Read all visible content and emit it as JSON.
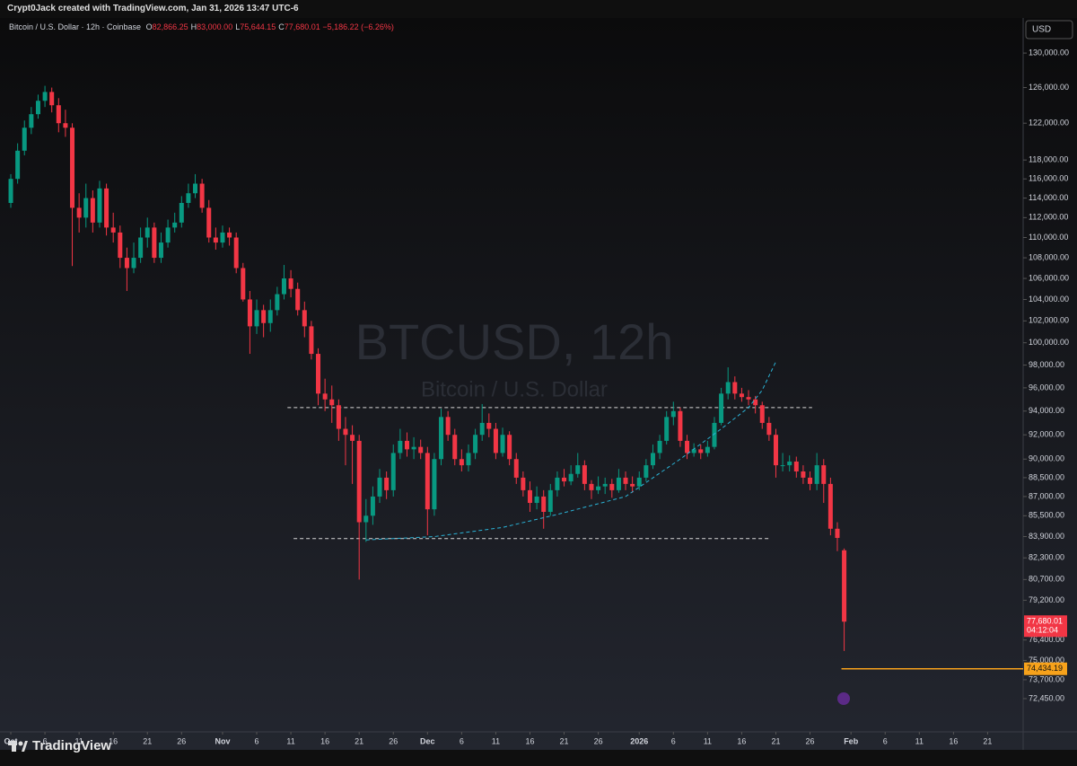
{
  "header": {
    "credit": "Crypt0Jack created with TradingView.com, Jan 31, 2026 13:47 UTC-6"
  },
  "footer": {
    "brand": "TradingView"
  },
  "chart_data": {
    "type": "candlestick",
    "symbol": "Bitcoin / U.S. Dollar · 12h · Coinbase",
    "legend": [
      {
        "key": "O",
        "label": "82,866.25"
      },
      {
        "key": "H",
        "label": "83,000.00"
      },
      {
        "key": "L",
        "label": "75,644.15"
      },
      {
        "key": "C",
        "label": "77,680.01"
      }
    ],
    "change": "−5,186.22 (−6.26%)",
    "watermark": {
      "title": "BTCUSD, 12h",
      "subtitle": "Bitcoin / U.S. Dollar"
    },
    "currency": "USD",
    "up_color": "#089981",
    "down_color": "#f23645",
    "x": [
      0,
      1,
      2,
      3,
      4,
      5,
      6,
      7,
      8,
      9,
      10,
      11,
      12,
      13,
      14,
      15,
      16,
      17,
      18,
      19,
      20,
      21,
      22,
      23,
      24,
      25,
      26,
      27,
      28,
      29,
      30,
      31,
      32,
      33,
      34,
      35,
      36,
      37,
      38,
      39,
      40,
      41,
      42,
      43,
      44,
      45,
      46,
      47,
      48,
      49,
      50,
      51,
      52,
      53,
      54,
      55,
      56,
      57,
      58,
      59,
      60,
      61,
      62,
      63,
      64,
      65,
      66,
      67,
      68,
      69,
      70,
      71,
      72,
      73,
      74,
      75,
      76,
      77,
      78,
      79,
      80,
      81,
      82,
      83,
      84,
      85,
      86,
      87,
      88,
      89,
      90,
      91,
      92,
      93,
      94,
      95,
      96,
      97,
      98,
      99,
      100,
      101,
      102,
      103,
      104,
      105,
      106,
      107,
      108,
      109,
      110,
      111,
      112,
      113,
      114,
      115,
      116,
      117,
      118,
      119,
      120,
      121,
      122
    ],
    "candles": [
      [
        113500,
        116500,
        113000,
        116000
      ],
      [
        116000,
        119800,
        115500,
        119000
      ],
      [
        119000,
        122300,
        118500,
        121500
      ],
      [
        121500,
        123800,
        120800,
        123000
      ],
      [
        123000,
        125200,
        122500,
        124500
      ],
      [
        124500,
        126200,
        123800,
        125500
      ],
      [
        125500,
        126000,
        123200,
        124000
      ],
      [
        124000,
        124800,
        121000,
        122000
      ],
      [
        122000,
        123500,
        120500,
        121500
      ],
      [
        121500,
        122000,
        107200,
        113000
      ],
      [
        113000,
        114500,
        110500,
        112000
      ],
      [
        112000,
        115500,
        111000,
        114000
      ],
      [
        114000,
        114800,
        110500,
        111500
      ],
      [
        111500,
        115800,
        111000,
        115000
      ],
      [
        115000,
        115500,
        110200,
        111000
      ],
      [
        111000,
        112500,
        109500,
        110500
      ],
      [
        110500,
        111200,
        107000,
        108000
      ],
      [
        108000,
        109000,
        104800,
        107000
      ],
      [
        107000,
        109500,
        106500,
        108000
      ],
      [
        108000,
        111000,
        107500,
        110000
      ],
      [
        110000,
        112000,
        109000,
        111000
      ],
      [
        111000,
        111500,
        107500,
        108000
      ],
      [
        108000,
        110500,
        107500,
        109500
      ],
      [
        109500,
        111800,
        109000,
        111000
      ],
      [
        111000,
        112500,
        110500,
        111500
      ],
      [
        111500,
        114200,
        111000,
        113500
      ],
      [
        113500,
        115500,
        113000,
        114500
      ],
      [
        114500,
        116500,
        114000,
        115500
      ],
      [
        115500,
        116000,
        112500,
        113000
      ],
      [
        113000,
        113800,
        109500,
        110000
      ],
      [
        110000,
        111000,
        108800,
        109500
      ],
      [
        109500,
        111200,
        109000,
        110500
      ],
      [
        110500,
        111000,
        109200,
        110000
      ],
      [
        110000,
        110500,
        106500,
        107000
      ],
      [
        107000,
        107500,
        103800,
        104000
      ],
      [
        104000,
        104800,
        99000,
        101500
      ],
      [
        101500,
        104000,
        100800,
        103000
      ],
      [
        103000,
        103500,
        100500,
        101800
      ],
      [
        101800,
        104000,
        101000,
        103000
      ],
      [
        103000,
        105200,
        102500,
        104500
      ],
      [
        104500,
        107300,
        104000,
        106000
      ],
      [
        106000,
        106800,
        104200,
        105000
      ],
      [
        105000,
        105600,
        102500,
        103000
      ],
      [
        103000,
        103800,
        100500,
        101500
      ],
      [
        101500,
        102000,
        98500,
        99000
      ],
      [
        99000,
        99500,
        94500,
        95500
      ],
      [
        95500,
        96800,
        94000,
        95000
      ],
      [
        95000,
        96200,
        93000,
        94500
      ],
      [
        94500,
        95000,
        91500,
        92500
      ],
      [
        92500,
        93500,
        89500,
        92000
      ],
      [
        92000,
        92800,
        88000,
        91500
      ],
      [
        91500,
        92000,
        80700,
        85000
      ],
      [
        85000,
        86800,
        83500,
        85500
      ],
      [
        85500,
        87800,
        84800,
        87000
      ],
      [
        87000,
        89200,
        86500,
        88500
      ],
      [
        88500,
        89000,
        86800,
        87500
      ],
      [
        87500,
        91200,
        87000,
        90500
      ],
      [
        90500,
        92500,
        90000,
        91500
      ],
      [
        91500,
        92200,
        90200,
        90800
      ],
      [
        90800,
        91800,
        90000,
        91000
      ],
      [
        91000,
        91600,
        90000,
        90500
      ],
      [
        90500,
        91000,
        84000,
        86000
      ],
      [
        86000,
        90500,
        85500,
        90000
      ],
      [
        90000,
        94200,
        89500,
        93500
      ],
      [
        93500,
        94000,
        91500,
        92000
      ],
      [
        92000,
        92500,
        89500,
        90000
      ],
      [
        90000,
        90800,
        89000,
        89500
      ],
      [
        89500,
        91200,
        89000,
        90500
      ],
      [
        90500,
        92500,
        90000,
        92000
      ],
      [
        92000,
        94600,
        91500,
        93000
      ],
      [
        93000,
        93800,
        91800,
        92500
      ],
      [
        92500,
        93000,
        90000,
        90500
      ],
      [
        90500,
        92600,
        90200,
        92000
      ],
      [
        92000,
        92300,
        89500,
        90000
      ],
      [
        90000,
        90500,
        88000,
        88500
      ],
      [
        88500,
        89000,
        87000,
        87500
      ],
      [
        87500,
        88200,
        85800,
        86500
      ],
      [
        86500,
        87800,
        86000,
        87000
      ],
      [
        87000,
        87500,
        84500,
        85800
      ],
      [
        85800,
        88000,
        85500,
        87500
      ],
      [
        87500,
        89000,
        87000,
        88500
      ],
      [
        88500,
        89200,
        87800,
        88200
      ],
      [
        88200,
        89500,
        87900,
        88800
      ],
      [
        88800,
        90500,
        88500,
        89500
      ],
      [
        89500,
        89900,
        87500,
        88000
      ],
      [
        88000,
        88300,
        86800,
        87500
      ],
      [
        87500,
        88600,
        87200,
        87800
      ],
      [
        87800,
        88500,
        87200,
        88000
      ],
      [
        88000,
        88400,
        86900,
        87500
      ],
      [
        87500,
        89200,
        87300,
        88500
      ],
      [
        88500,
        89000,
        87500,
        88000
      ],
      [
        88000,
        88600,
        87300,
        87800
      ],
      [
        87800,
        89000,
        87500,
        88500
      ],
      [
        88500,
        90000,
        88200,
        89500
      ],
      [
        89500,
        91200,
        89200,
        90500
      ],
      [
        90500,
        92000,
        90000,
        91500
      ],
      [
        91500,
        94000,
        91200,
        93500
      ],
      [
        93500,
        94800,
        92800,
        94000
      ],
      [
        94000,
        94300,
        91000,
        91500
      ],
      [
        91500,
        92000,
        90000,
        90500
      ],
      [
        90500,
        91300,
        90200,
        90800
      ],
      [
        90800,
        91200,
        90000,
        90500
      ],
      [
        90500,
        91500,
        90200,
        91000
      ],
      [
        91000,
        93500,
        90800,
        93000
      ],
      [
        93000,
        96000,
        92800,
        95500
      ],
      [
        95500,
        97800,
        95000,
        96500
      ],
      [
        96500,
        97000,
        95000,
        95500
      ],
      [
        95500,
        96000,
        94800,
        95200
      ],
      [
        95200,
        95800,
        94500,
        95000
      ],
      [
        95000,
        95300,
        93800,
        94500
      ],
      [
        94500,
        94800,
        92500,
        93000
      ],
      [
        93000,
        93500,
        91500,
        92000
      ],
      [
        92000,
        92500,
        88500,
        89500
      ],
      [
        89500,
        90500,
        89000,
        89500
      ],
      [
        89500,
        90300,
        89000,
        89800
      ],
      [
        89800,
        90200,
        88500,
        89000
      ],
      [
        89000,
        89500,
        88000,
        88500
      ],
      [
        88500,
        89000,
        87500,
        88000
      ],
      [
        88000,
        90500,
        87500,
        89500
      ],
      [
        89500,
        90000,
        86500,
        88000
      ],
      [
        88000,
        88500,
        84000,
        84500
      ],
      [
        84500,
        85000,
        82800,
        83800
      ],
      [
        82866.25,
        83000,
        75644.15,
        77680.01
      ]
    ],
    "xlim": [
      -1.58,
      148.2
    ],
    "xticks": [
      {
        "value": 0,
        "label": "Oct"
      },
      {
        "value": 5,
        "label": "6"
      },
      {
        "value": 10,
        "label": "11"
      },
      {
        "value": 15,
        "label": "16"
      },
      {
        "value": 20,
        "label": "21"
      },
      {
        "value": 25,
        "label": "26"
      },
      {
        "value": 31,
        "label": "Nov"
      },
      {
        "value": 36,
        "label": "6"
      },
      {
        "value": 41,
        "label": "11"
      },
      {
        "value": 46,
        "label": "16"
      },
      {
        "value": 51,
        "label": "21"
      },
      {
        "value": 56,
        "label": "26"
      },
      {
        "value": 61,
        "label": "Dec"
      },
      {
        "value": 66,
        "label": "6"
      },
      {
        "value": 71,
        "label": "11"
      },
      {
        "value": 76,
        "label": "16"
      },
      {
        "value": 81,
        "label": "21"
      },
      {
        "value": 86,
        "label": "26"
      },
      {
        "value": 92,
        "label": "2026"
      },
      {
        "value": 97,
        "label": "6"
      },
      {
        "value": 102,
        "label": "11"
      },
      {
        "value": 107,
        "label": "16"
      },
      {
        "value": 112,
        "label": "21"
      },
      {
        "value": 117,
        "label": "26"
      },
      {
        "value": 123,
        "label": "Feb"
      },
      {
        "value": 128,
        "label": "6"
      },
      {
        "value": 133,
        "label": "11"
      },
      {
        "value": 138,
        "label": "16"
      },
      {
        "value": 143,
        "label": "21"
      }
    ],
    "ylim": [
      70300,
      134200
    ],
    "log_scale": true,
    "grid": false,
    "yticks": [
      {
        "value": 130000,
        "label": "130,000.00"
      },
      {
        "value": 126000,
        "label": "126,000.00"
      },
      {
        "value": 122000,
        "label": "122,000.00"
      },
      {
        "value": 118000,
        "label": "118,000.00"
      },
      {
        "value": 116000,
        "label": "116,000.00"
      },
      {
        "value": 114000,
        "label": "114,000.00"
      },
      {
        "value": 112000,
        "label": "112,000.00"
      },
      {
        "value": 110000,
        "label": "110,000.00"
      },
      {
        "value": 108000,
        "label": "108,000.00"
      },
      {
        "value": 106000,
        "label": "106,000.00"
      },
      {
        "value": 104000,
        "label": "104,000.00"
      },
      {
        "value": 102000,
        "label": "102,000.00"
      },
      {
        "value": 100000,
        "label": "100,000.00"
      },
      {
        "value": 98000,
        "label": "98,000.00"
      },
      {
        "value": 96000,
        "label": "96,000.00"
      },
      {
        "value": 94000,
        "label": "94,000.00"
      },
      {
        "value": 92000,
        "label": "92,000.00"
      },
      {
        "value": 90000,
        "label": "90,000.00"
      },
      {
        "value": 88500,
        "label": "88,500.00"
      },
      {
        "value": 87000,
        "label": "87,000.00"
      },
      {
        "value": 85500,
        "label": "85,500.00"
      },
      {
        "value": 83900,
        "label": "83,900.00"
      },
      {
        "value": 82300,
        "label": "82,300.00"
      },
      {
        "value": 80700,
        "label": "80,700.00"
      },
      {
        "value": 79200,
        "label": "79,200.00"
      },
      {
        "value": 76400,
        "label": "76,400.00"
      },
      {
        "value": 75000,
        "label": "75,000.00"
      },
      {
        "value": 73700,
        "label": "73,700.00"
      },
      {
        "value": 72450,
        "label": "72,450.00"
      }
    ],
    "last_price": {
      "value": 77680.01,
      "label": "77,680.01",
      "countdown": "04:12:04",
      "color": "#f23645"
    },
    "alert_line": {
      "value": 74434.19,
      "label": "74,434.19",
      "x": [
        121.6,
        148.2
      ],
      "color": "#f7a21b"
    },
    "levels": [
      {
        "value": 94300,
        "x": [
          40.5,
          117.3
        ]
      },
      {
        "value": 83750,
        "x": [
          41.4,
          111
        ]
      }
    ],
    "curve": {
      "x": [
        52,
        62,
        72,
        80,
        90,
        98,
        104,
        108,
        110,
        112
      ],
      "values": [
        83650,
        83900,
        84600,
        85600,
        87000,
        90000,
        92500,
        94300,
        95800,
        98300
      ],
      "color": "#2bb3d6"
    }
  }
}
